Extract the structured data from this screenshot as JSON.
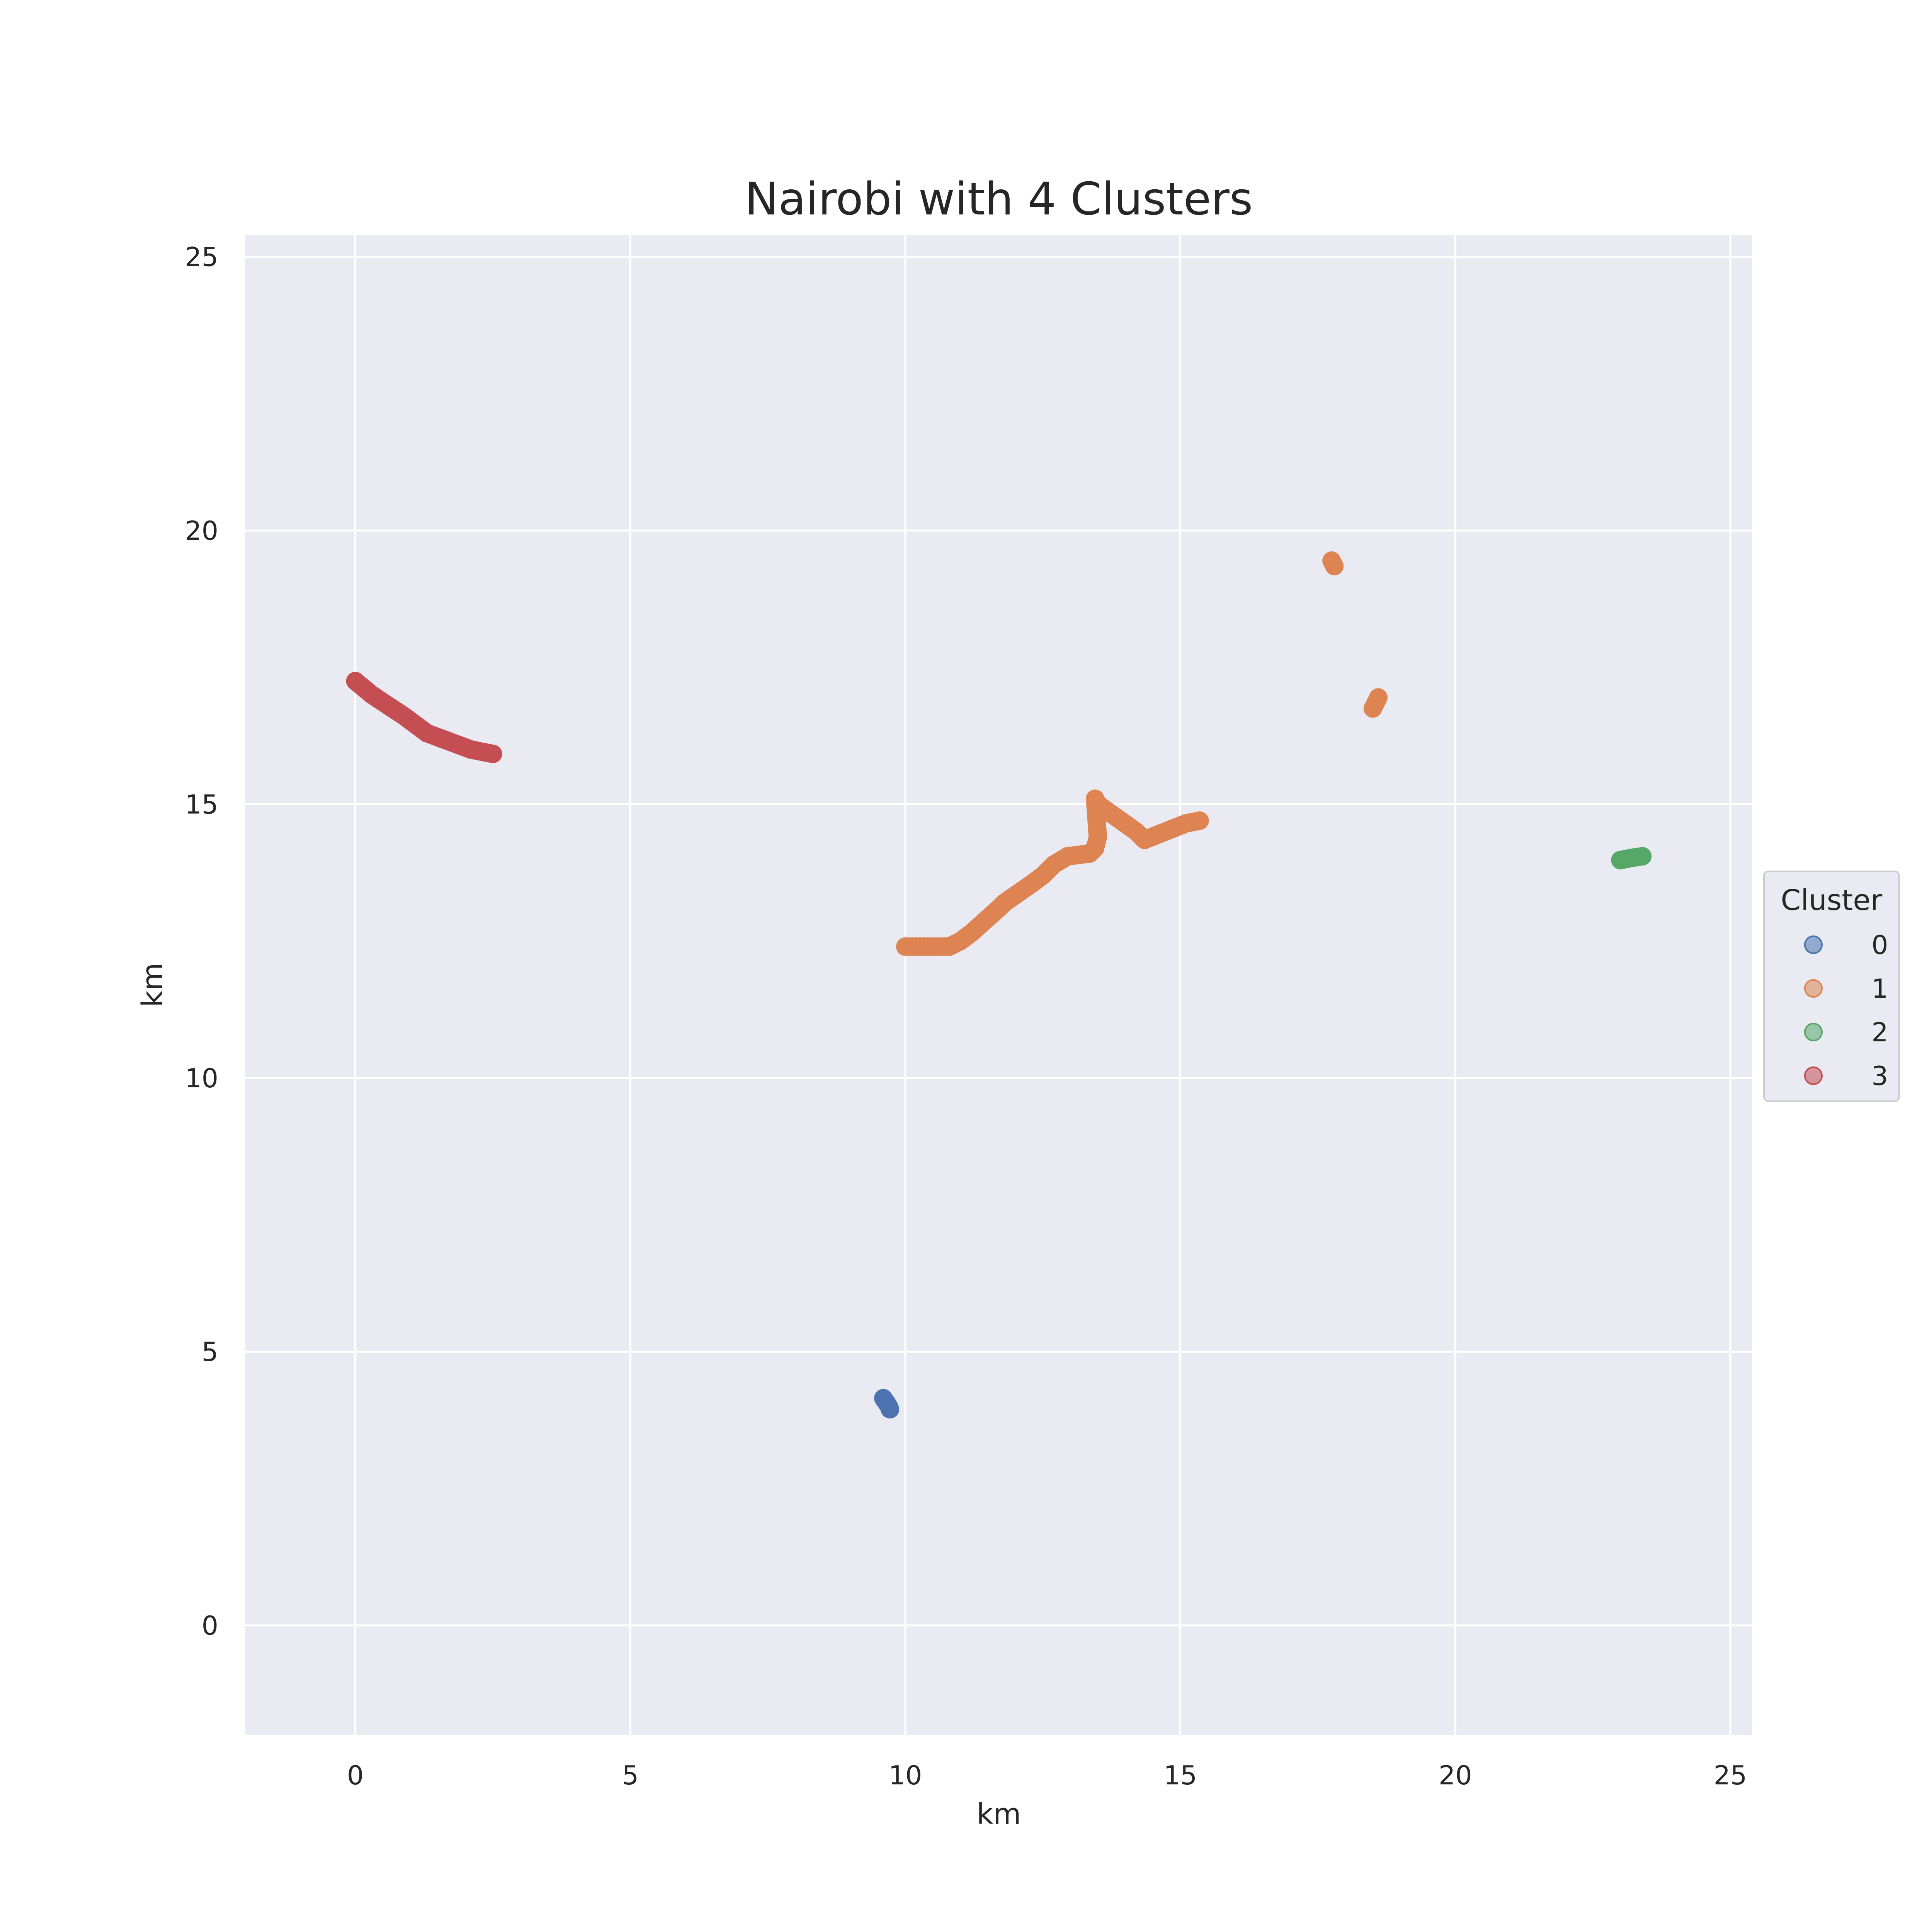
{
  "chart_data": {
    "type": "scatter",
    "title": "Nairobi with 4 Clusters",
    "xlabel": "km",
    "ylabel": "km",
    "xlim": [
      -2,
      25.4
    ],
    "ylim": [
      -2,
      25.4
    ],
    "xticks": [
      0,
      5,
      10,
      15,
      20,
      25
    ],
    "yticks": [
      0,
      5,
      10,
      15,
      20,
      25
    ],
    "grid": true,
    "legend": {
      "title": "Cluster",
      "placement": "right-outside-center"
    },
    "series": [
      {
        "name": "0",
        "color": "#4c72b0",
        "points": [
          [
            9.6,
            4.15
          ],
          [
            9.65,
            4.08
          ],
          [
            9.7,
            4.0
          ],
          [
            9.72,
            3.95
          ]
        ]
      },
      {
        "name": "1",
        "color": "#dd8452",
        "points": [
          [
            10.0,
            12.4
          ],
          [
            10.2,
            12.4
          ],
          [
            10.4,
            12.4
          ],
          [
            10.6,
            12.4
          ],
          [
            10.8,
            12.4
          ],
          [
            11.0,
            12.5
          ],
          [
            11.2,
            12.65
          ],
          [
            11.7,
            13.1
          ],
          [
            11.8,
            13.2
          ],
          [
            12.3,
            13.55
          ],
          [
            12.5,
            13.7
          ],
          [
            12.7,
            13.9
          ],
          [
            12.95,
            14.05
          ],
          [
            13.35,
            14.1
          ],
          [
            13.45,
            14.2
          ],
          [
            13.5,
            14.4
          ],
          [
            13.45,
            15.1
          ],
          [
            13.5,
            15.0
          ],
          [
            14.2,
            14.5
          ],
          [
            14.35,
            14.35
          ],
          [
            15.1,
            14.65
          ],
          [
            15.35,
            14.7
          ],
          [
            17.75,
            19.45
          ],
          [
            17.8,
            19.35
          ],
          [
            18.5,
            16.75
          ],
          [
            18.6,
            16.95
          ]
        ]
      },
      {
        "name": "2",
        "color": "#55a868",
        "points": [
          [
            23.0,
            13.98
          ],
          [
            23.2,
            14.02
          ],
          [
            23.4,
            14.05
          ]
        ]
      },
      {
        "name": "3",
        "color": "#c44e52",
        "points": [
          [
            0.0,
            17.25
          ],
          [
            0.3,
            17.0
          ],
          [
            0.6,
            16.8
          ],
          [
            0.9,
            16.6
          ],
          [
            1.3,
            16.3
          ],
          [
            1.7,
            16.15
          ],
          [
            2.1,
            16.0
          ],
          [
            2.5,
            15.92
          ]
        ]
      }
    ]
  }
}
